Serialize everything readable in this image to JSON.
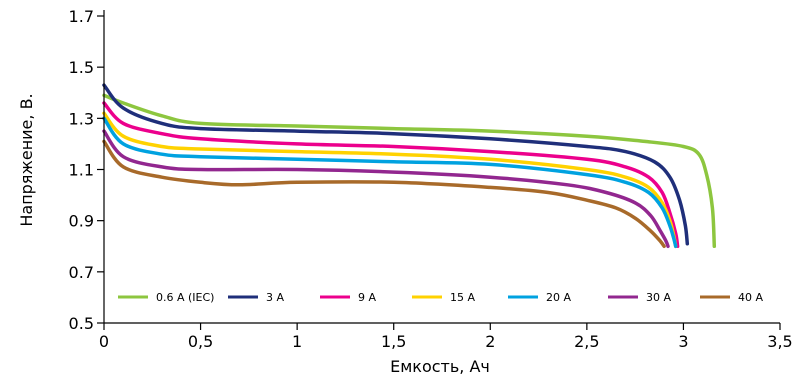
{
  "chart_data": {
    "type": "line",
    "xlabel": "Емкость, Ач",
    "ylabel": "Напряжение, В.",
    "xlim": [
      0,
      3.5
    ],
    "ylim": [
      0.5,
      1.7
    ],
    "x_ticks": [
      {
        "value": 0,
        "label": "0"
      },
      {
        "value": 0.5,
        "label": "0,5"
      },
      {
        "value": 1,
        "label": "1"
      },
      {
        "value": 1.5,
        "label": "1,5"
      },
      {
        "value": 2,
        "label": "2"
      },
      {
        "value": 2.5,
        "label": "2,5"
      },
      {
        "value": 3,
        "label": "3"
      },
      {
        "value": 3.5,
        "label": "3,5"
      }
    ],
    "y_ticks": [
      {
        "value": 0.5,
        "label": "0.5"
      },
      {
        "value": 0.7,
        "label": "0.7"
      },
      {
        "value": 0.9,
        "label": "0.9"
      },
      {
        "value": 1.1,
        "label": "1.1"
      },
      {
        "value": 1.3,
        "label": "1.3"
      },
      {
        "value": 1.5,
        "label": "1.5"
      },
      {
        "value": 1.7,
        "label": "1.7"
      }
    ],
    "grid": false,
    "legend_position": "bottom-inside",
    "series": [
      {
        "name": "0.6 A (IEC)",
        "color": "#8dc63f",
        "x": [
          0,
          0.1,
          0.3,
          0.5,
          1.0,
          1.5,
          2.0,
          2.5,
          2.8,
          3.0,
          3.08,
          3.12,
          3.15,
          3.16
        ],
        "y": [
          1.39,
          1.36,
          1.31,
          1.28,
          1.27,
          1.26,
          1.25,
          1.23,
          1.21,
          1.19,
          1.16,
          1.08,
          0.95,
          0.8
        ]
      },
      {
        "name": "3 A",
        "color": "#1f2f7a",
        "x": [
          0,
          0.1,
          0.3,
          0.5,
          1.0,
          1.5,
          2.0,
          2.5,
          2.7,
          2.85,
          2.93,
          2.98,
          3.01,
          3.02
        ],
        "y": [
          1.43,
          1.34,
          1.28,
          1.26,
          1.25,
          1.24,
          1.22,
          1.19,
          1.17,
          1.13,
          1.07,
          0.98,
          0.88,
          0.81
        ]
      },
      {
        "name": "9 A",
        "color": "#ec008c",
        "x": [
          0,
          0.1,
          0.3,
          0.5,
          1.0,
          1.5,
          2.0,
          2.5,
          2.7,
          2.82,
          2.89,
          2.93,
          2.96,
          2.97
        ],
        "y": [
          1.36,
          1.28,
          1.24,
          1.22,
          1.2,
          1.19,
          1.17,
          1.14,
          1.11,
          1.07,
          1.01,
          0.93,
          0.85,
          0.8
        ]
      },
      {
        "name": "15 A",
        "color": "#ffd200",
        "x": [
          0,
          0.1,
          0.3,
          0.5,
          1.0,
          1.5,
          2.0,
          2.5,
          2.7,
          2.82,
          2.89,
          2.93,
          2.95,
          2.96
        ],
        "y": [
          1.32,
          1.23,
          1.19,
          1.18,
          1.17,
          1.16,
          1.14,
          1.1,
          1.07,
          1.03,
          0.97,
          0.9,
          0.84,
          0.8
        ]
      },
      {
        "name": "20 A",
        "color": "#00a2e0",
        "x": [
          0,
          0.1,
          0.3,
          0.5,
          1.0,
          1.5,
          2.0,
          2.5,
          2.7,
          2.82,
          2.89,
          2.93,
          2.95,
          2.96
        ],
        "y": [
          1.3,
          1.2,
          1.16,
          1.15,
          1.14,
          1.13,
          1.12,
          1.08,
          1.05,
          1.01,
          0.95,
          0.88,
          0.83,
          0.8
        ]
      },
      {
        "name": "30 A",
        "color": "#92278f",
        "x": [
          0,
          0.1,
          0.3,
          0.5,
          1.0,
          1.5,
          2.0,
          2.4,
          2.6,
          2.75,
          2.83,
          2.88,
          2.91,
          2.92
        ],
        "y": [
          1.25,
          1.15,
          1.11,
          1.1,
          1.1,
          1.09,
          1.07,
          1.04,
          1.01,
          0.97,
          0.92,
          0.86,
          0.82,
          0.8
        ]
      },
      {
        "name": "40 A",
        "color": "#a86a2a",
        "x": [
          0,
          0.1,
          0.3,
          0.5,
          0.7,
          1.0,
          1.5,
          2.0,
          2.3,
          2.5,
          2.65,
          2.75,
          2.83,
          2.88,
          2.9
        ],
        "y": [
          1.21,
          1.11,
          1.07,
          1.05,
          1.04,
          1.05,
          1.05,
          1.03,
          1.01,
          0.98,
          0.95,
          0.91,
          0.86,
          0.82,
          0.8
        ]
      }
    ]
  }
}
